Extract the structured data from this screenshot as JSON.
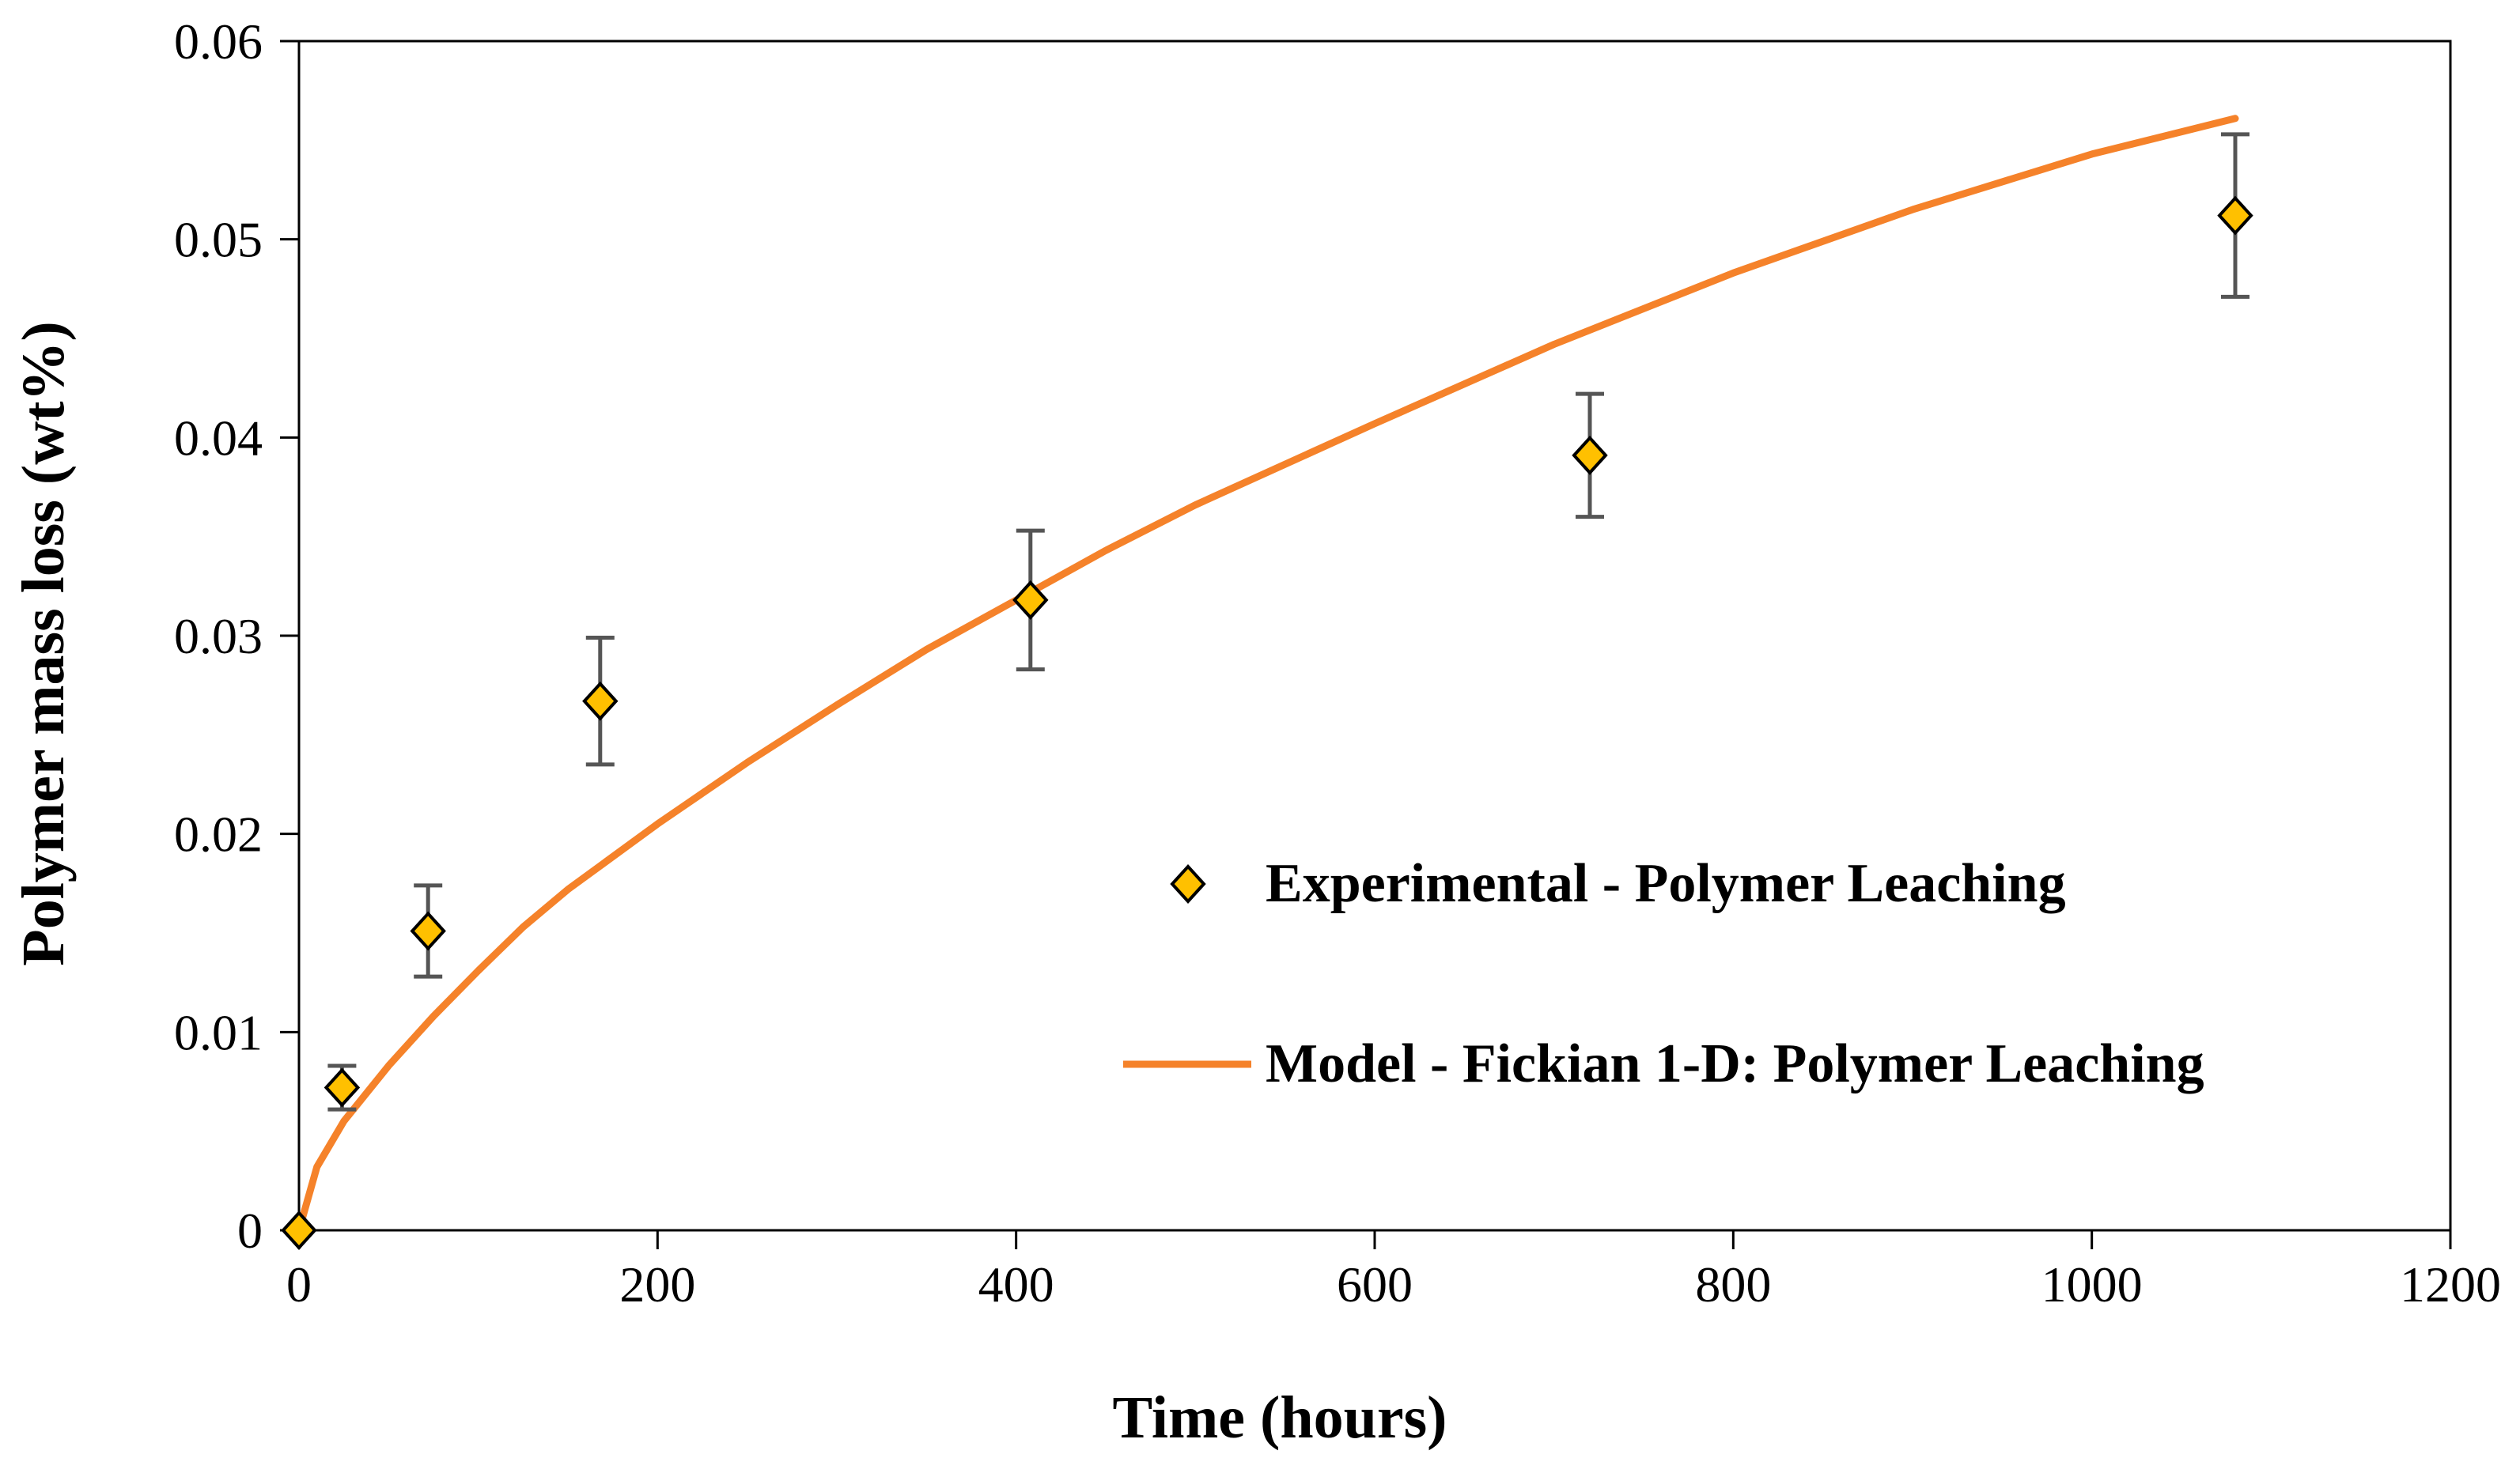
{
  "chart_data": {
    "type": "scatter",
    "title": "",
    "xlabel": "Time (hours)",
    "ylabel": "Polymer mass loss (wt%)",
    "xlim": [
      0,
      1200
    ],
    "ylim": [
      0,
      0.06
    ],
    "xticks": [
      0,
      200,
      400,
      600,
      800,
      1000,
      1200
    ],
    "yticks": [
      0,
      0.01,
      0.02,
      0.03,
      0.04,
      0.05,
      0.06
    ],
    "xtick_labels": [
      "0",
      "200",
      "400",
      "600",
      "800",
      "1000",
      "1200"
    ],
    "ytick_labels": [
      "0",
      "0.01",
      "0.02",
      "0.03",
      "0.04",
      "0.05",
      "0.06"
    ],
    "grid": false,
    "legend_position": "center-right",
    "series": [
      {
        "name": "Experimental - Polymer Leaching",
        "kind": "scatter",
        "marker": "diamond",
        "color": "#FFC000",
        "x": [
          0,
          24,
          72,
          168,
          408,
          720,
          1080
        ],
        "y": [
          0,
          0.0072,
          0.0151,
          0.0267,
          0.0318,
          0.0391,
          0.0512
        ],
        "error": [
          0,
          0.0011,
          0.0023,
          0.0032,
          0.0035,
          0.0031,
          0.0041
        ]
      },
      {
        "name": "Model - Fickian 1-D: Polymer Leaching",
        "kind": "line",
        "color": "#F5822A",
        "x": [
          0,
          10,
          25,
          50,
          75,
          100,
          125,
          150,
          200,
          250,
          300,
          350,
          400,
          450,
          500,
          600,
          700,
          800,
          900,
          1000,
          1080
        ],
        "y": [
          0,
          0.0032,
          0.0055,
          0.0083,
          0.0108,
          0.0131,
          0.0153,
          0.0172,
          0.0205,
          0.0236,
          0.0265,
          0.0293,
          0.0318,
          0.0343,
          0.0366,
          0.0407,
          0.0447,
          0.0483,
          0.0515,
          0.0543,
          0.0561
        ]
      }
    ]
  }
}
